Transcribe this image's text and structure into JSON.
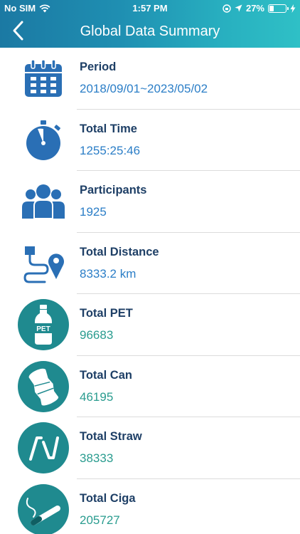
{
  "status_bar": {
    "carrier": "No SIM",
    "time": "1:57 PM",
    "battery_text": "27%",
    "battery_level": 0.27
  },
  "header": {
    "title": "Global Data Summary",
    "back_icon": "chevron-left-icon"
  },
  "colors": {
    "header_gradient_start": "#1b79a3",
    "header_gradient_end": "#2fc0c6",
    "title_text": "#1e3f66",
    "blue_value": "#2b7ec7",
    "teal_value": "#2a9c8f",
    "blue_icon": "#2a6fb5",
    "teal_icon": "#1f8a8f"
  },
  "items": [
    {
      "icon": "calendar-icon",
      "label": "Period",
      "value": "2018/09/01~2023/05/02"
    },
    {
      "icon": "stopwatch-icon",
      "label": "Total Time",
      "value": "1255:25:46"
    },
    {
      "icon": "participants-icon",
      "label": "Participants",
      "value": "1925"
    },
    {
      "icon": "route-pin-icon",
      "label": "Total Distance",
      "value": "8333.2 km"
    },
    {
      "icon": "pet-bottle-icon",
      "label": "Total PET",
      "value": "96683"
    },
    {
      "icon": "can-icon",
      "label": "Total Can",
      "value": "46195"
    },
    {
      "icon": "straw-icon",
      "label": "Total Straw",
      "value": "38333"
    },
    {
      "icon": "cigarette-icon",
      "label": "Total Ciga",
      "value": "205727"
    }
  ]
}
